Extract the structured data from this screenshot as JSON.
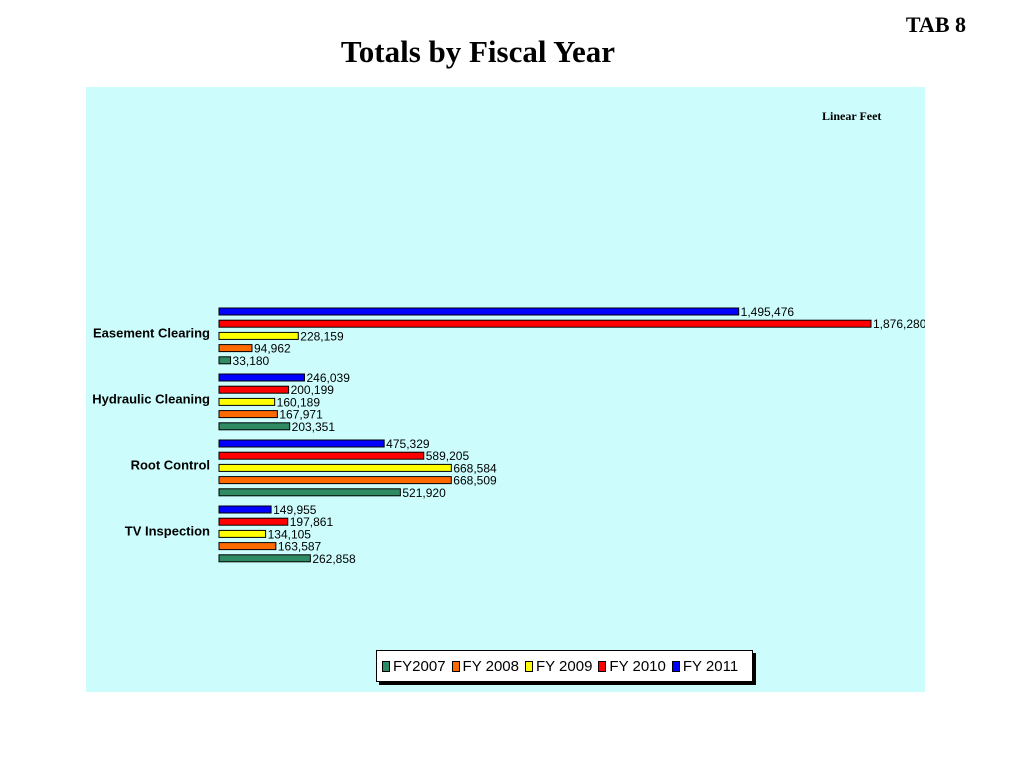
{
  "header": {
    "tab": "TAB 8",
    "title": "Totals by Fiscal Year"
  },
  "chart_data": {
    "type": "bar",
    "orientation": "horizontal",
    "units_label": "Linear Feet",
    "categories": [
      "Easement Clearing",
      "Hydraulic Cleaning",
      "Root Control",
      "TV Inspection"
    ],
    "series": [
      {
        "name": "FY2007",
        "color": "#2e8b64",
        "values": [
          33180,
          203351,
          521920,
          262858
        ],
        "labels": [
          "33,180",
          "203,351",
          "521,920",
          "262,858"
        ]
      },
      {
        "name": "FY 2008",
        "color": "#ff6a00",
        "values": [
          94962,
          167971,
          668509,
          163587
        ],
        "labels": [
          "94,962",
          "167,971",
          "668,509",
          "163,587"
        ]
      },
      {
        "name": "FY 2009",
        "color": "#ffff00",
        "values": [
          228159,
          160189,
          668584,
          134105
        ],
        "labels": [
          "228,159",
          "160,189",
          "668,584",
          "134,105"
        ]
      },
      {
        "name": "FY 2010",
        "color": "#ff0000",
        "values": [
          1876280,
          200199,
          589205,
          197861
        ],
        "labels": [
          "1,876,280",
          "200,199",
          "589,205",
          "197,861"
        ]
      },
      {
        "name": "FY 2011",
        "color": "#0000ff",
        "values": [
          1495476,
          246039,
          475329,
          149955
        ],
        "labels": [
          "1,495,476",
          "246,039",
          "475,329",
          "149,955"
        ]
      }
    ],
    "xlim": [
      0,
      1876280
    ],
    "grid": false,
    "legend_position": "bottom"
  }
}
